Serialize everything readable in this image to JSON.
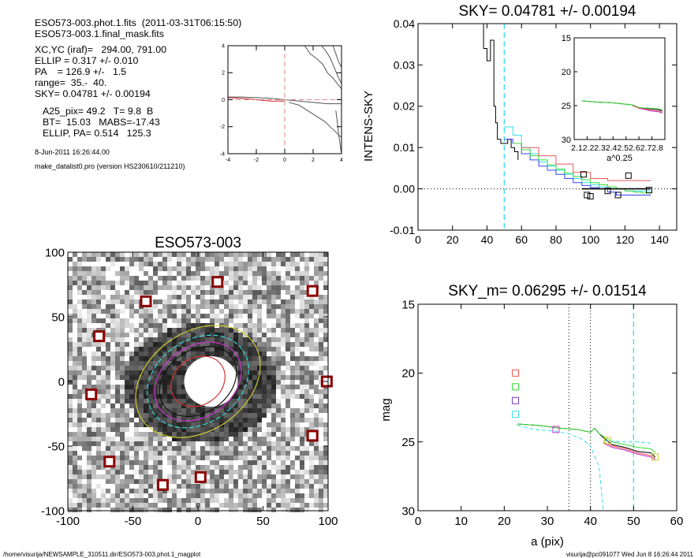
{
  "info": {
    "lines_a": [
      "ESO573-003.phot.1.fits  (2011-03-31T06:15:50)",
      "ESO573-003.1.final_mask.fits"
    ],
    "lines_b": [
      "XC,YC (iraf)=   294.00, 791.00",
      "ELLIP = 0.317 +/- 0.010",
      "PA    = 126.9 +/-   1.5",
      "range=  35.-  40.",
      "SKY= 0.04781 +/- 0.00194"
    ],
    "lines_c": [
      "A25_pix= 49.2   T= 9.8  B",
      "BT=  15.03   MABS=-17.43",
      "ELLIP, PA= 0.514   125.3"
    ],
    "date": "8-Jun-2011 16:26:44.00",
    "program": "make_datalist0.pro (version HS230610/211210)"
  },
  "footer": {
    "left": "/home/visurija/NEWSAMPLE_310511.dir/ESO573-003.phot.1_magplot",
    "right": "visurija@pc091077  Wed Jun  8 16:26:44 2011"
  },
  "chart_data": [
    {
      "id": "mini",
      "type": "line",
      "title": "",
      "xlim": [
        -4,
        4
      ],
      "ylim": [
        -4,
        4
      ],
      "xticks": [
        "-4",
        "-2",
        "0",
        "2",
        "4"
      ],
      "yticks": [
        "-4",
        "-2",
        "0",
        "2",
        "4"
      ],
      "series": [
        {
          "color": "#555555",
          "x": [
            1.4,
            1.8,
            2.3,
            2.7,
            3.0,
            3.4,
            3.7,
            4.0
          ],
          "y": [
            4.0,
            3.4,
            3.0,
            2.6,
            2.0,
            1.6,
            1.2,
            0.8
          ]
        },
        {
          "color": "#555555",
          "x": [
            2.6,
            2.9,
            3.2,
            3.4,
            3.6,
            3.8,
            4.0
          ],
          "y": [
            4.0,
            3.6,
            3.1,
            2.6,
            2.1,
            1.6,
            1.2
          ]
        },
        {
          "color": "#555555",
          "x": [
            3.4,
            3.6,
            3.8,
            4.0
          ],
          "y": [
            4.0,
            3.4,
            2.8,
            2.4
          ]
        },
        {
          "color": "#555555",
          "x": [
            -4.0,
            -3.0,
            -2.0,
            -1.0,
            0.0,
            1.0,
            2.0,
            3.0,
            4.0
          ],
          "y": [
            0.2,
            0.2,
            0.15,
            0.1,
            0.0,
            -0.1,
            -0.2,
            -0.3,
            -0.3
          ]
        },
        {
          "color": "#555555",
          "x": [
            0.3,
            1.0,
            1.6,
            2.2,
            2.8,
            3.4,
            4.0
          ],
          "y": [
            -0.2,
            -0.4,
            -0.8,
            -1.2,
            -1.6,
            -2.2,
            -2.8
          ]
        },
        {
          "color": "#555555",
          "x": [
            3.6,
            3.7,
            3.8,
            4.0
          ],
          "y": [
            -0.8,
            -1.6,
            -2.6,
            -4.0
          ]
        },
        {
          "color": "#cc2222",
          "x": [
            -4.0,
            -3.0,
            -2.0,
            -1.5,
            -1.0,
            -0.5,
            0.0
          ],
          "y": [
            0.15,
            0.1,
            0.0,
            -0.05,
            -0.1,
            -0.1,
            -0.1
          ]
        }
      ],
      "crosshair": {
        "x": 0,
        "y": 0,
        "color": "#e08080"
      }
    },
    {
      "id": "intens",
      "type": "line",
      "title": "SKY= 0.04781 +/- 0.00194",
      "xlabel": "",
      "ylabel": "INTENS-SKY",
      "xlim": [
        0,
        150
      ],
      "ylim": [
        -0.01,
        0.04
      ],
      "xticks": [
        "0",
        "20",
        "40",
        "60",
        "80",
        "100",
        "120",
        "140"
      ],
      "yticks": [
        "-0.01",
        "0.00",
        "0.01",
        "0.02",
        "0.03",
        "0.04"
      ],
      "vline": {
        "x": 50,
        "color": "#33ddee"
      },
      "hline": {
        "y": 0.0
      },
      "series": [
        {
          "name": "",
          "color": "#000000",
          "steps": true,
          "x": [
            36,
            38,
            40,
            42,
            44,
            45,
            46,
            47,
            48,
            50,
            52,
            54,
            56,
            58
          ],
          "y": [
            0.04,
            0.034,
            0.031,
            0.036,
            0.02,
            0.016,
            0.012,
            0.012,
            0.011,
            0.011,
            0.012,
            0.01,
            0.009,
            0.007
          ]
        },
        {
          "name": "",
          "color": "#33ddee",
          "steps": true,
          "x": [
            50,
            55,
            60,
            65,
            70,
            75,
            80,
            85,
            90,
            95,
            100,
            105,
            110,
            115,
            120,
            125,
            130,
            135
          ],
          "y": [
            0.015,
            0.013,
            0.01,
            0.0085,
            0.0065,
            0.0055,
            0.0045,
            0.0035,
            0.0025,
            0.0015,
            0.001,
            0.0005,
            0.0,
            0.0,
            -0.0005,
            -0.0005,
            -0.0005,
            -0.0005
          ]
        },
        {
          "name": "",
          "color": "#3344ee",
          "steps": true,
          "x": [
            50,
            55,
            60,
            65,
            70,
            75,
            80,
            85,
            90,
            95,
            100,
            105,
            110,
            115,
            120,
            125,
            130,
            135
          ],
          "y": [
            0.012,
            0.011,
            0.0085,
            0.007,
            0.0055,
            0.0045,
            0.0035,
            0.0025,
            0.0015,
            0.0008,
            0.0003,
            0.0,
            -0.0008,
            -0.0015,
            -0.0015,
            -0.0015,
            -0.0015,
            -0.0015
          ]
        },
        {
          "name": "",
          "color": "#33dd33",
          "steps": true,
          "x": [
            55,
            60,
            65,
            70,
            75,
            80,
            85,
            90,
            95,
            100,
            105,
            110,
            115,
            120,
            125,
            130,
            135
          ],
          "y": [
            0.011,
            0.0095,
            0.008,
            0.007,
            0.0058,
            0.0048,
            0.0038,
            0.003,
            0.0022,
            0.0015,
            0.001,
            0.0005,
            0.0,
            -0.0005,
            -0.0008,
            -0.001,
            -0.001
          ]
        },
        {
          "name": "",
          "color": "#ee5555",
          "steps": true,
          "x": [
            60,
            70,
            80,
            90,
            100,
            110,
            120,
            135
          ],
          "y": [
            0.01,
            0.008,
            0.006,
            0.004,
            0.0025,
            0.002,
            0.002,
            0.002
          ]
        },
        {
          "name": "",
          "color": "#000000",
          "steps": false,
          "width": 1.6,
          "x": [
            95,
            135
          ],
          "y": [
            0.0,
            0.0
          ]
        }
      ],
      "markers": {
        "color": "#000000",
        "x": [
          96,
          98,
          100,
          110,
          116,
          122,
          134
        ],
        "y": [
          0.0035,
          -0.0015,
          -0.0018,
          -0.0005,
          -0.0015,
          0.0032,
          -0.0003
        ]
      },
      "inset": {
        "type": "line",
        "xlabel": "a^0.25",
        "xlim": [
          2.1,
          2.8
        ],
        "ylim": [
          30,
          15
        ],
        "xtick_label": "2.12.22.32.42.52.62.72.8",
        "yticks": [
          "15",
          "20",
          "25",
          "30"
        ],
        "series": [
          {
            "color": "#000000",
            "x": [
              2.16,
              2.3,
              2.4,
              2.5,
              2.55,
              2.6,
              2.65,
              2.7,
              2.75,
              2.78
            ],
            "y": [
              24.3,
              24.5,
              24.6,
              24.8,
              24.9,
              25.3,
              25.4,
              25.5,
              25.6,
              25.8
            ]
          },
          {
            "color": "#33dd33",
            "x": [
              2.16,
              2.3,
              2.4,
              2.5,
              2.55,
              2.6,
              2.65,
              2.7,
              2.75,
              2.78
            ],
            "y": [
              24.3,
              24.5,
              24.6,
              24.8,
              24.9,
              25.3,
              25.35,
              25.4,
              25.5,
              25.6
            ]
          },
          {
            "color": "#ee5555",
            "x": [
              2.55,
              2.6,
              2.65,
              2.7,
              2.75,
              2.78
            ],
            "y": [
              25.0,
              25.4,
              25.5,
              25.7,
              25.8,
              26.0
            ]
          },
          {
            "color": "#cc33cc",
            "x": [
              2.6,
              2.65,
              2.7,
              2.75,
              2.78
            ],
            "y": [
              25.4,
              25.6,
              25.8,
              25.9,
              26.1
            ]
          }
        ]
      }
    },
    {
      "id": "image",
      "type": "heatmap",
      "title": "ESO573-003",
      "xlim": [
        -100,
        100
      ],
      "ylim": [
        -100,
        100
      ],
      "xticks": [
        "-100",
        "-50",
        "0",
        "50",
        "100"
      ],
      "yticks": [
        "-100",
        "-50",
        "0",
        "50",
        "100"
      ],
      "marked_stars": {
        "color": "#8b0000",
        "x": [
          15,
          -40,
          -76,
          -82,
          88,
          99,
          88,
          -68,
          -27,
          2
        ],
        "y": [
          77,
          62,
          35,
          -10,
          70,
          0,
          -42,
          -62,
          -80,
          -74
        ]
      },
      "ellipses": [
        {
          "color": "#cccc33",
          "rx": 52,
          "ry": 38
        },
        {
          "color": "#33dddd",
          "rx": 42,
          "ry": 32
        },
        {
          "color": "#cc33cc",
          "rx": 36,
          "ry": 27
        },
        {
          "color": "#111111",
          "rx": 32,
          "ry": 24
        },
        {
          "color": "#cc3333",
          "rx": 22,
          "ry": 18
        }
      ]
    },
    {
      "id": "mag",
      "type": "line",
      "title": "SKY_m=  0.06295 +/- 0.01514",
      "xlabel": "a (pix)",
      "ylabel": "mag",
      "xlim": [
        0,
        60
      ],
      "ylim": [
        30,
        15
      ],
      "xticks": [
        "0",
        "10",
        "20",
        "30",
        "40",
        "50",
        "60"
      ],
      "yticks": [
        "15",
        "20",
        "25",
        "30"
      ],
      "vlines": [
        {
          "x": 35,
          "color": "#000000"
        },
        {
          "x": 40,
          "color": "#000000"
        },
        {
          "x": 50,
          "color": "#33ddee"
        }
      ],
      "legend_boxes": [
        {
          "color": "#ee5555",
          "y": 20.0
        },
        {
          "color": "#33dd33",
          "y": 21.0
        },
        {
          "color": "#7733cc",
          "y": 22.0
        },
        {
          "color": "#33ddee",
          "y": 23.0
        }
      ],
      "series": [
        {
          "name": "",
          "color": "#000000",
          "x": [
            23,
            28,
            33,
            37,
            40,
            41,
            42,
            43,
            45,
            48,
            51,
            54,
            55
          ],
          "y": [
            23.7,
            23.8,
            24.0,
            24.1,
            24.3,
            24.0,
            24.4,
            24.7,
            25.2,
            25.4,
            25.7,
            25.8,
            26.1
          ]
        },
        {
          "name": "",
          "color": "#33dd33",
          "x": [
            23,
            28,
            33,
            37,
            40,
            41,
            42,
            43,
            45,
            48,
            51,
            54,
            55
          ],
          "y": [
            23.7,
            23.8,
            24.0,
            24.1,
            24.3,
            24.0,
            24.4,
            24.6,
            25.0,
            25.2,
            25.4,
            25.5,
            25.8
          ]
        },
        {
          "name": "",
          "color": "#ee5555",
          "x": [
            43,
            45,
            48,
            51,
            54,
            55
          ],
          "y": [
            25.0,
            25.3,
            25.5,
            25.8,
            26.0,
            26.2
          ]
        },
        {
          "name": "",
          "color": "#cc33cc",
          "x": [
            43,
            45,
            48,
            51,
            54,
            55
          ],
          "y": [
            25.1,
            25.4,
            25.6,
            25.9,
            26.1,
            26.3
          ]
        },
        {
          "name": "",
          "color": "#33ddee",
          "dash": true,
          "x": [
            23,
            27,
            31,
            35,
            38,
            40,
            42,
            43
          ],
          "y": [
            23.8,
            24.1,
            24.2,
            24.4,
            24.8,
            25.3,
            26.8,
            30.0
          ]
        },
        {
          "name": "",
          "color": "#33ddee",
          "dash": true,
          "x": [
            43,
            47,
            51,
            54
          ],
          "y": [
            24.9,
            25.0,
            25.0,
            25.1
          ]
        }
      ],
      "markers": [
        {
          "color": "#cc33cc",
          "x": 32,
          "y": 24.1
        },
        {
          "color": "#cccc33",
          "x": 44,
          "y": 24.9
        },
        {
          "color": "#cccc33",
          "x": 55,
          "y": 26.1
        }
      ]
    }
  ]
}
